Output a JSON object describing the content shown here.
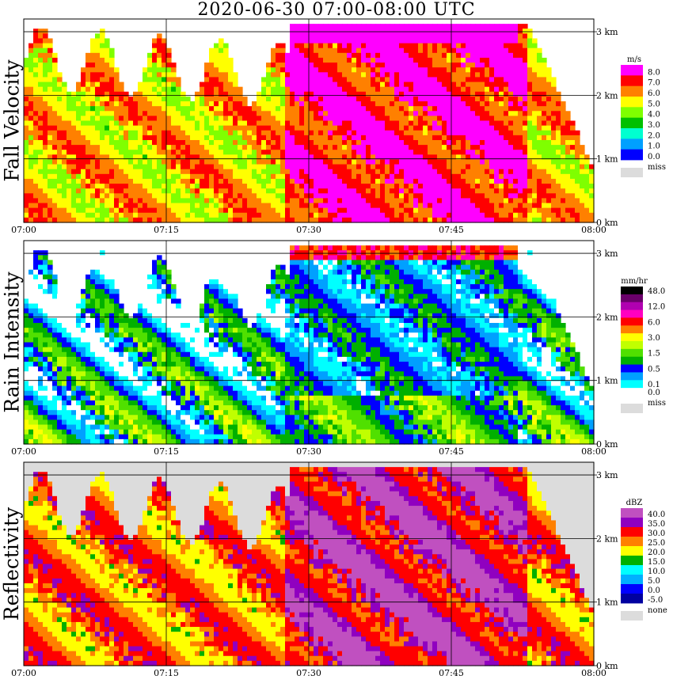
{
  "title": "2020-06-30   07:00-08:00 UTC",
  "chart_data": [
    {
      "type": "heatmap",
      "name": "fall-velocity",
      "ylabel": "Fall Velocity",
      "unit": "m/s",
      "x_ticks": [
        "07:00",
        "07:15",
        "07:30",
        "07:45",
        "08:00"
      ],
      "y_ticks": [
        "0 km",
        "1 km",
        "2 km",
        "3 km"
      ],
      "x_range": [
        "07:00",
        "08:00"
      ],
      "y_range_km": [
        0,
        3.2
      ],
      "grid": true,
      "legend": {
        "placement": "right",
        "entries": [
          {
            "label": "8.0",
            "color": "#ff00ff"
          },
          {
            "label": "7.0",
            "color": "#ff0000"
          },
          {
            "label": "6.0",
            "color": "#ff8000"
          },
          {
            "label": "5.0",
            "color": "#ffff00"
          },
          {
            "label": "4.0",
            "color": "#7fff00"
          },
          {
            "label": "3.0",
            "color": "#00c000"
          },
          {
            "label": "2.0",
            "color": "#00ffd0"
          },
          {
            "label": "1.0",
            "color": "#00a0ff"
          },
          {
            "label": "0.0",
            "color": "#0000ff"
          },
          {
            "label": "miss",
            "color": "#dcdcdc"
          }
        ]
      }
    },
    {
      "type": "heatmap",
      "name": "rain-intensity",
      "ylabel": "Rain Intensity",
      "unit": "mm/hr",
      "x_ticks": [
        "07:00",
        "07:15",
        "07:30",
        "07:45",
        "08:00"
      ],
      "y_ticks": [
        "0 km",
        "1 km",
        "2 km",
        "3 km"
      ],
      "x_range": [
        "07:00",
        "08:00"
      ],
      "y_range_km": [
        0,
        3.2
      ],
      "grid": true,
      "legend": {
        "placement": "right",
        "entries": [
          {
            "label": "48.0",
            "color": "#000000"
          },
          {
            "label": "",
            "color": "#6a006a"
          },
          {
            "label": "12.0",
            "color": "#b000b0"
          },
          {
            "label": "",
            "color": "#ff00c0"
          },
          {
            "label": "6.0",
            "color": "#ff0000"
          },
          {
            "label": "",
            "color": "#ff8000"
          },
          {
            "label": "3.0",
            "color": "#ffff00"
          },
          {
            "label": "",
            "color": "#c0ff00"
          },
          {
            "label": "1.5",
            "color": "#50e000"
          },
          {
            "label": "",
            "color": "#00b000"
          },
          {
            "label": "0.5",
            "color": "#0000ff"
          },
          {
            "label": "",
            "color": "#00a0ff"
          },
          {
            "label": "0.1",
            "color": "#00ffff"
          },
          {
            "label": "0.0",
            "color": "#ffffff"
          },
          {
            "label": "miss",
            "color": "#dcdcdc"
          }
        ]
      }
    },
    {
      "type": "heatmap",
      "name": "reflectivity",
      "ylabel": "Reflectivity",
      "unit": "dBZ",
      "x_ticks": [
        "07:00",
        "07:15",
        "07:30",
        "07:45",
        "08:00"
      ],
      "y_ticks": [
        "0 km",
        "1 km",
        "2 km",
        "3 km"
      ],
      "x_range": [
        "07:00",
        "08:00"
      ],
      "y_range_km": [
        0,
        3.2
      ],
      "grid": true,
      "legend": {
        "placement": "right",
        "entries": [
          {
            "label": "40.0",
            "color": "#c050c0"
          },
          {
            "label": "35.0",
            "color": "#9000c0"
          },
          {
            "label": "30.0",
            "color": "#ff0000"
          },
          {
            "label": "25.0",
            "color": "#ff8000"
          },
          {
            "label": "20.0",
            "color": "#ffff00"
          },
          {
            "label": "15.0",
            "color": "#00b000"
          },
          {
            "label": "10.0",
            "color": "#00ffff"
          },
          {
            "label": "5.0",
            "color": "#00b0ff"
          },
          {
            "label": "0.0",
            "color": "#0000ff"
          },
          {
            "label": "-5.0",
            "color": "#0000a0"
          },
          {
            "label": "none",
            "color": "#dcdcdc"
          }
        ]
      }
    }
  ]
}
